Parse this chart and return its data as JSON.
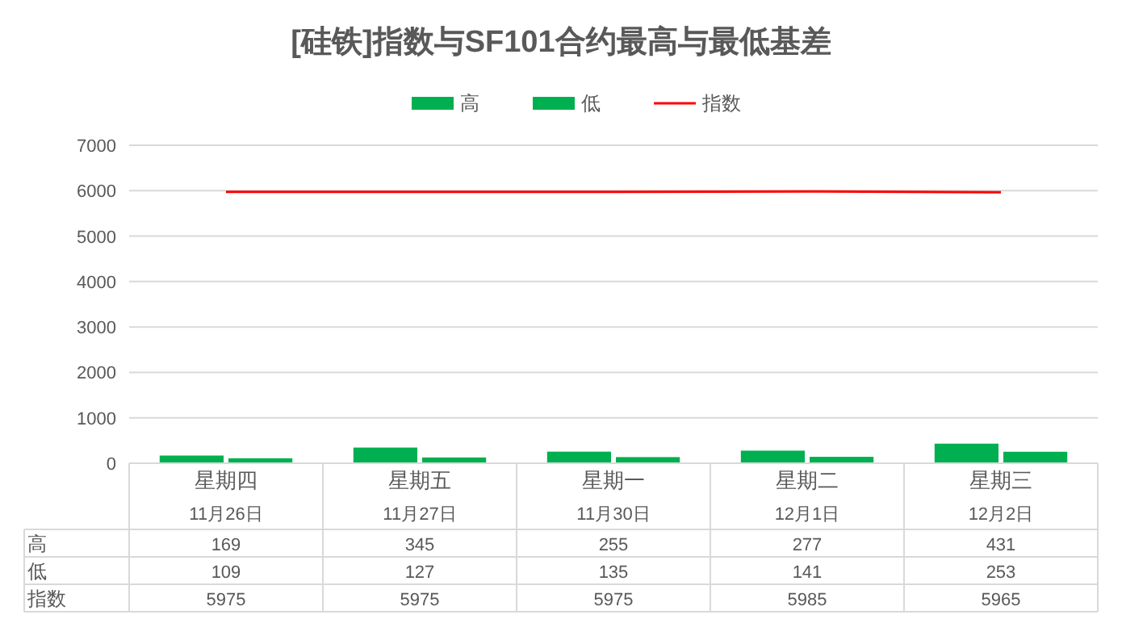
{
  "chart_data": {
    "type": "bar",
    "title": "[硅铁]指数与SF101合约最高与最低基差",
    "categories": [
      "星期四\n11月26日",
      "星期五\n11月27日",
      "星期一\n11月30日",
      "星期二\n12月1日",
      "星期三\n12月2日"
    ],
    "series": [
      {
        "name": "高",
        "color": "#00b050",
        "values": [
          169,
          345,
          255,
          277,
          431
        ]
      },
      {
        "name": "低",
        "color": "#00b050",
        "values": [
          109,
          127,
          135,
          141,
          253
        ]
      },
      {
        "name": "指数",
        "type": "line",
        "color": "#ff0000",
        "values": [
          5975,
          5975,
          5975,
          5985,
          5965
        ]
      }
    ],
    "ylim": [
      0,
      7000
    ],
    "yticks": [
      0,
      1000,
      2000,
      3000,
      4000,
      5000,
      6000,
      7000
    ],
    "grid": "y",
    "legend": "top",
    "data_labels": true
  }
}
